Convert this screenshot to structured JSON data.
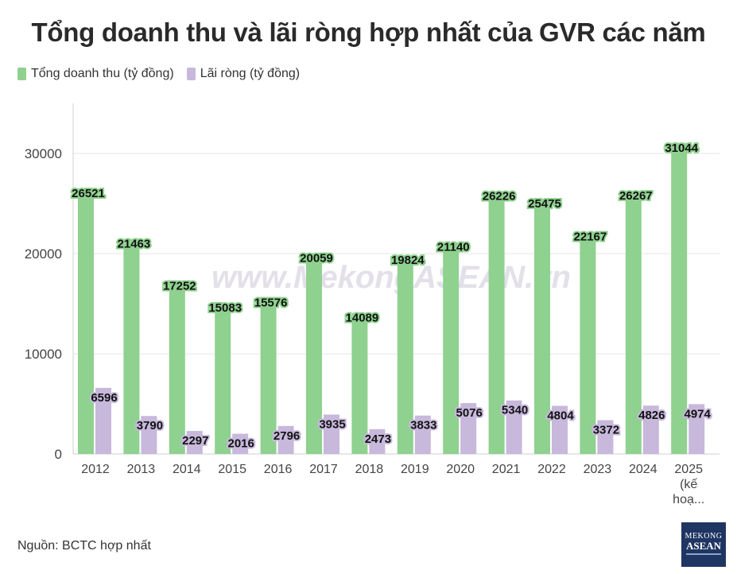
{
  "title": "Tổng doanh thu và lãi ròng hợp nhất của GVR các năm",
  "source": "Nguồn: BCTC hợp nhất",
  "watermark": "www.MekongASEAN.vn",
  "logo": {
    "line1": "MEKONG",
    "line2": "ASEAN"
  },
  "colors": {
    "revenue": "#8fd18f",
    "profit": "#c8b8dc",
    "grid": "#e6e6e6",
    "axis": "#cfcfcf"
  },
  "chart_data": {
    "type": "bar",
    "categories": [
      "2012",
      "2013",
      "2014",
      "2015",
      "2016",
      "2017",
      "2018",
      "2019",
      "2020",
      "2021",
      "2022",
      "2023",
      "2024",
      "2025 (kế hoạ..."
    ],
    "series": [
      {
        "name": "Tổng doanh thu (tỷ đồng)",
        "values": [
          26521,
          21463,
          17252,
          15083,
          15576,
          20059,
          14089,
          19824,
          21140,
          26226,
          25475,
          22167,
          26267,
          31044
        ]
      },
      {
        "name": "Lãi ròng (tỷ đồng)",
        "values": [
          6596,
          3790,
          2297,
          2016,
          2796,
          3935,
          2473,
          3833,
          5076,
          5340,
          4804,
          3372,
          4826,
          4974
        ]
      }
    ],
    "ylim": [
      0,
      35000
    ],
    "yticks": [
      0,
      10000,
      20000,
      30000
    ],
    "grid": true,
    "legend": "top-left"
  }
}
